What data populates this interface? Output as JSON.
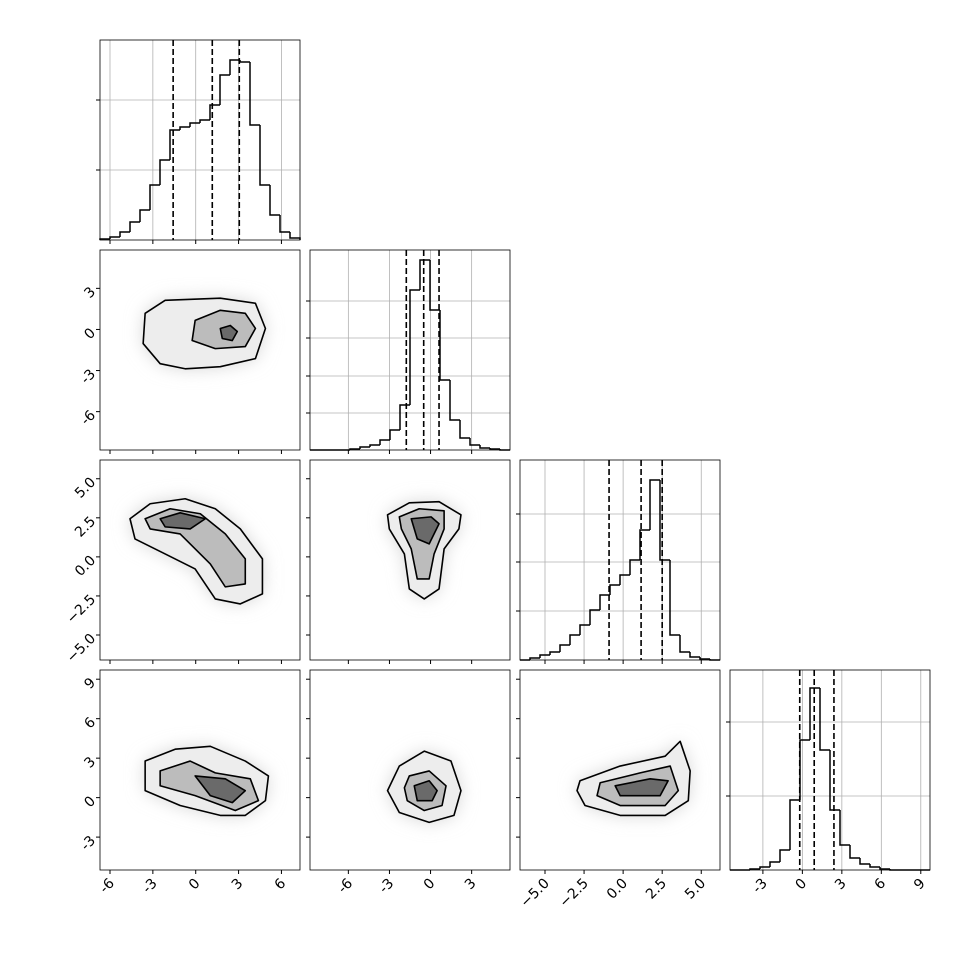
{
  "chart_data": {
    "type": "corner",
    "grid": true,
    "hist_color": "#000000",
    "quantile_style": "dashed",
    "parameters": [
      {
        "lim": [
          -6.7,
          7.3
        ],
        "ticks": [
          -6,
          -3,
          0,
          3,
          6
        ],
        "bins": [
          -6.7,
          -6.0,
          -5.3,
          -4.6,
          -3.9,
          -3.2,
          -2.5,
          -1.8,
          -1.1,
          -0.4,
          0.3,
          1.0,
          1.7,
          2.4,
          3.1,
          3.8,
          4.5,
          5.2,
          5.9,
          6.6,
          7.3
        ],
        "counts": [
          1,
          3,
          8,
          18,
          30,
          55,
          80,
          110,
          113,
          117,
          120,
          135,
          165,
          180,
          178,
          115,
          55,
          25,
          8,
          2
        ],
        "quantiles": [
          -1.58,
          1.16,
          3.05
        ],
        "hist_ylim": [
          0,
          200
        ],
        "hist_yticks": [
          70,
          140
        ]
      },
      {
        "lim": [
          -8.8,
          5.8
        ],
        "ticks": [
          -6,
          -3,
          0,
          3
        ],
        "bins": [
          -8.8,
          -8.07,
          -7.34,
          -6.61,
          -5.88,
          -5.15,
          -4.42,
          -3.69,
          -2.96,
          -2.23,
          -1.5,
          -0.77,
          -0.04,
          0.69,
          1.42,
          2.15,
          2.88,
          3.61,
          4.34,
          5.07,
          5.8
        ],
        "counts": [
          0,
          0,
          0,
          0,
          1,
          3,
          5,
          10,
          20,
          45,
          160,
          190,
          140,
          70,
          30,
          12,
          5,
          2,
          1,
          0
        ],
        "quantiles": [
          -1.77,
          -0.5,
          0.62
        ],
        "hist_ylim": [
          0,
          200
        ],
        "hist_yticks": [
          37,
          74,
          112,
          149
        ]
      },
      {
        "lim": [
          -6.6,
          6.2
        ],
        "ticks": [
          {
            "value": -5,
            "label": "−5.0"
          },
          {
            "value": -2.5,
            "label": "−2.5"
          },
          {
            "value": 0,
            "label": "0.0"
          },
          {
            "value": 2.5,
            "label": "2.5"
          },
          {
            "value": 5,
            "label": "5.0"
          }
        ],
        "bins": [
          -6.6,
          -5.96,
          -5.32,
          -4.68,
          -4.04,
          -3.4,
          -2.76,
          -2.12,
          -1.48,
          -0.84,
          -0.2,
          0.44,
          1.08,
          1.72,
          2.36,
          3.0,
          3.64,
          4.28,
          4.92,
          5.56,
          6.2
        ],
        "counts": [
          0,
          2,
          5,
          8,
          15,
          25,
          35,
          50,
          65,
          75,
          85,
          100,
          130,
          180,
          100,
          25,
          8,
          3,
          1,
          0
        ],
        "quantiles": [
          -0.9,
          1.15,
          2.5
        ],
        "hist_ylim": [
          0,
          200
        ],
        "hist_yticks": [
          49,
          98,
          146
        ]
      },
      {
        "lim": [
          -5.5,
          9.7
        ],
        "ticks": [
          -3,
          0,
          3,
          6,
          9
        ],
        "bins": [
          -5.5,
          -4.74,
          -3.98,
          -3.22,
          -2.46,
          -1.7,
          -0.94,
          -0.18,
          0.58,
          1.34,
          2.1,
          2.86,
          3.62,
          4.38,
          5.14,
          5.9,
          6.66,
          7.42,
          8.18,
          8.94,
          9.7
        ],
        "counts": [
          0,
          0,
          1,
          3,
          8,
          20,
          70,
          130,
          182,
          120,
          60,
          25,
          12,
          6,
          3,
          1,
          0,
          0,
          0,
          0
        ],
        "quantiles": [
          -0.2,
          0.9,
          2.4
        ],
        "hist_ylim": [
          0,
          200
        ],
        "hist_yticks": [
          74,
          148
        ]
      }
    ],
    "pairs": [
      {
        "row": 1,
        "col": 0,
        "contours": [
          {
            "x": [
              -3.54,
              -2.14,
              1.72,
              4.18,
              4.88,
              4.18,
              1.72,
              -0.74,
              -2.49,
              -3.68
            ],
            "y": [
              1.18,
              2.13,
              2.28,
              1.91,
              0.07,
              -2.13,
              -2.72,
              -2.87,
              -2.5,
              -1.03
            ]
          },
          {
            "x": [
              -0.04,
              1.72,
              3.47,
              4.18,
              3.47,
              1.37,
              -0.25
            ],
            "y": [
              0.66,
              1.4,
              1.18,
              0.07,
              -1.25,
              -1.4,
              -0.81
            ]
          },
          {
            "x": [
              1.72,
              2.42,
              2.91,
              2.56,
              1.86
            ],
            "y": [
              0.07,
              0.29,
              -0.15,
              -0.81,
              -0.66
            ]
          }
        ]
      },
      {
        "row": 2,
        "col": 0,
        "contours": [
          {
            "x": [
              -4.6,
              -3.19,
              -0.74,
              1.37,
              3.12,
              4.67,
              4.67,
              3.12,
              1.37,
              -0.04,
              -2.14,
              -4.25
            ],
            "y": [
              2.44,
              3.4,
              3.72,
              3.08,
              1.79,
              -0.13,
              -2.37,
              -3.01,
              -2.69,
              -0.77,
              0.19,
              1.15
            ]
          },
          {
            "x": [
              -3.54,
              -1.79,
              0.32,
              2.07,
              3.47,
              3.47,
              2.07,
              1.02,
              -1.09,
              -3.19
            ],
            "y": [
              2.44,
              3.08,
              2.76,
              1.47,
              -0.13,
              -1.73,
              -1.92,
              -0.45,
              1.47,
              1.79
            ]
          },
          {
            "x": [
              -2.49,
              -1.09,
              0.67,
              -0.39,
              -2.14
            ],
            "y": [
              2.44,
              2.82,
              2.44,
              1.79,
              1.92
            ]
          }
        ]
      },
      {
        "row": 3,
        "col": 0,
        "contours": [
          {
            "x": [
              -3.54,
              -1.44,
              1.02,
              3.47,
              5.09,
              4.88,
              3.47,
              1.72,
              -1.09,
              -3.54
            ],
            "y": [
              2.78,
              3.68,
              3.9,
              2.78,
              1.65,
              -0.23,
              -1.35,
              -1.35,
              -0.6,
              0.53
            ]
          },
          {
            "x": [
              -2.49,
              -0.39,
              1.37,
              3.82,
              4.39,
              2.77,
              -0.04,
              -2.49
            ],
            "y": [
              2.03,
              2.78,
              1.88,
              1.43,
              -0.23,
              -0.98,
              0.15,
              0.9
            ]
          },
          {
            "x": [
              -0.04,
              2.07,
              3.47,
              2.56,
              1.02
            ],
            "y": [
              1.65,
              1.43,
              0.53,
              -0.38,
              0.15
            ]
          }
        ]
      },
      {
        "row": 2,
        "col": 1,
        "contours": [
          {
            "x": [
              -3.14,
              -1.55,
              0.62,
              2.22,
              2.07,
              0.99,
              0.62,
              -0.46,
              -1.55,
              -1.91,
              -3.01
            ],
            "y": [
              2.69,
              3.46,
              3.53,
              2.69,
              1.79,
              0.51,
              -2.05,
              -2.69,
              -2.05,
              0.19,
              1.79
            ]
          },
          {
            "x": [
              -2.28,
              -0.83,
              0.99,
              0.99,
              0.26,
              -0.1,
              -0.97,
              -1.41,
              -2.13
            ],
            "y": [
              2.56,
              3.08,
              2.95,
              1.79,
              0.19,
              -1.41,
              -1.41,
              0.51,
              1.79
            ]
          },
          {
            "x": [
              -1.41,
              0.04,
              0.62,
              -0.1,
              -0.97
            ],
            "y": [
              2.44,
              2.56,
              2.12,
              0.83,
              1.15
            ]
          }
        ]
      },
      {
        "row": 3,
        "col": 1,
        "contours": [
          {
            "x": [
              -2.28,
              -0.46,
              1.49,
              2.22,
              1.71,
              -0.1,
              -2.28,
              -3.14
            ],
            "y": [
              2.4,
              3.53,
              2.78,
              0.53,
              -1.35,
              -1.88,
              -1.13,
              0.53
            ]
          },
          {
            "x": [
              -1.55,
              -0.1,
              1.13,
              0.84,
              -0.46,
              -1.7,
              -1.91
            ],
            "y": [
              1.65,
              2.03,
              0.9,
              -0.6,
              -0.98,
              -0.23,
              0.75
            ]
          },
          {
            "x": [
              -1.19,
              -0.1,
              0.48,
              0.12,
              -0.97
            ],
            "y": [
              0.9,
              1.28,
              0.53,
              -0.23,
              -0.23
            ]
          }
        ]
      },
      {
        "row": 3,
        "col": 2,
        "contours": [
          {
            "x": [
              -2.76,
              -0.19,
              2.69,
              3.65,
              4.29,
              4.17,
              2.69,
              -0.19,
              -2.44,
              -2.95
            ],
            "y": [
              1.28,
              2.4,
              3.15,
              4.28,
              2.03,
              -0.23,
              -1.35,
              -1.35,
              -0.6,
              0.53
            ]
          },
          {
            "x": [
              -1.47,
              1.09,
              3.01,
              3.53,
              2.69,
              -0.19,
              -1.67
            ],
            "y": [
              1.13,
              1.88,
              2.4,
              0.53,
              -0.6,
              -0.6,
              0.15
            ]
          },
          {
            "x": [
              -0.51,
              1.73,
              2.88,
              2.37,
              -0.19
            ],
            "y": [
              0.9,
              1.43,
              1.28,
              0.15,
              0.15
            ]
          }
        ]
      }
    ]
  }
}
